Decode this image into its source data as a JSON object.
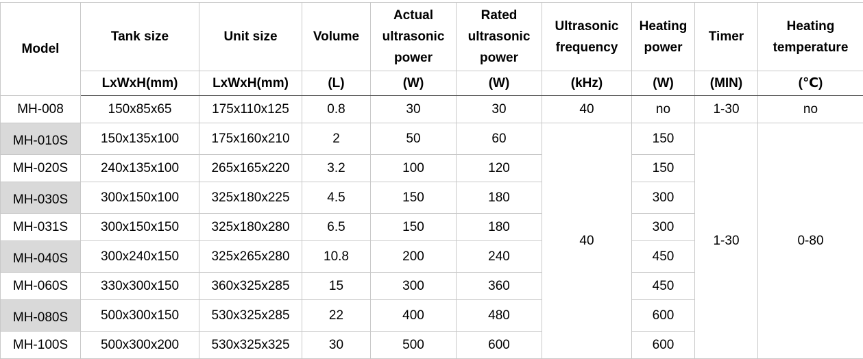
{
  "header": {
    "columns": [
      {
        "title": "Model"
      },
      {
        "title": "Tank size",
        "unit": "LxWxH(mm)"
      },
      {
        "title": "Unit size",
        "unit": "LxWxH(mm)"
      },
      {
        "title": "Volume",
        "unit": "(L)"
      },
      {
        "title": "Actual ultrasonic power",
        "unit": "(W)"
      },
      {
        "title": "Rated ultrasonic power",
        "unit": "(W)"
      },
      {
        "title": "Ultrasonic frequency",
        "unit": "(kHz)"
      },
      {
        "title": "Heating power",
        "unit": "(W)"
      },
      {
        "title": "Timer",
        "unit": "(MIN)"
      },
      {
        "title": "Heating temperature",
        "unit": "(℃)"
      }
    ]
  },
  "first_row": [
    "MH-008",
    "150x85x65",
    "175x110x125",
    "0.8",
    "30",
    "30",
    "40",
    "no",
    "1-30",
    "no"
  ],
  "group": {
    "rows": [
      [
        "MH-010S",
        "150x135x100",
        "175x160x210",
        "2",
        "50",
        "60",
        "150"
      ],
      [
        "MH-020S",
        "240x135x100",
        "265x165x220",
        "3.2",
        "100",
        "120",
        "150"
      ],
      [
        "MH-030S",
        "300x150x100",
        "325x180x225",
        "4.5",
        "150",
        "180",
        "300"
      ],
      [
        "MH-031S",
        "300x150x150",
        "325x180x280",
        "6.5",
        "150",
        "180",
        "300"
      ],
      [
        "MH-040S",
        "300x240x150",
        "325x265x280",
        "10.8",
        "200",
        "240",
        "450"
      ],
      [
        "MH-060S",
        "330x300x150",
        "360x325x285",
        "15",
        "300",
        "360",
        "450"
      ],
      [
        "MH-080S",
        "500x300x150",
        "530x325x285",
        "22",
        "400",
        "480",
        "600"
      ],
      [
        "MH-100S",
        "500x300x200",
        "530x325x325",
        "30",
        "500",
        "600",
        "600"
      ]
    ],
    "frequency": "40",
    "timer": "1-30",
    "temperature": "0-80"
  }
}
